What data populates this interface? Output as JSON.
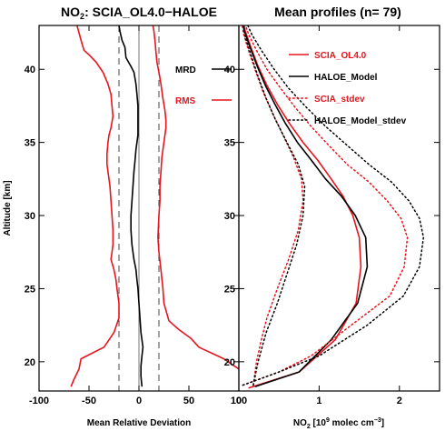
{
  "chart_data": [
    {
      "type": "line",
      "title_main": "NO",
      "title_sub": "2",
      "title_rest": ": SCIA_OL4.0−HALOE",
      "xlabel": "Mean Relative Deviation",
      "ylabel": "Altitude [km]",
      "xlim": [
        -100,
        100
      ],
      "ylim": [
        18,
        43
      ],
      "xticks": [
        -100,
        -50,
        0,
        50,
        100
      ],
      "yticks": [
        20,
        25,
        30,
        35,
        40
      ],
      "grid": false,
      "legend_position": "top-right",
      "reference_lines": [
        {
          "x": -20,
          "style": "dashed",
          "color": "#444444"
        },
        {
          "x": 0,
          "style": "solid",
          "color": "#777777"
        },
        {
          "x": 20,
          "style": "dashed",
          "color": "#444444"
        }
      ],
      "series": [
        {
          "name": "MRD",
          "color": "#000000",
          "x": [
            3,
            2,
            2,
            3,
            4,
            3,
            2,
            1,
            0,
            -1,
            -2,
            -3,
            -5,
            -7,
            -8,
            -8,
            -7,
            -6,
            -5,
            -4,
            -3,
            -2,
            -1,
            -1,
            -1,
            -1,
            -2,
            -3,
            -5,
            -8,
            -13,
            -14,
            -17,
            -19,
            -20
          ],
          "y": [
            18.3,
            19,
            19.7,
            20.4,
            21,
            21.5,
            22,
            23,
            24,
            25,
            25.6,
            26.3,
            27,
            28,
            29,
            30,
            31,
            32,
            33,
            33.7,
            34.5,
            35,
            35.5,
            36,
            36.8,
            37.5,
            38.3,
            39,
            39.8,
            40.2,
            40.8,
            41.5,
            42,
            42.6,
            43
          ]
        },
        {
          "name": "RMS",
          "color": "#e8141e",
          "x": [
            -68,
            -65,
            -60,
            -58,
            -35,
            -25,
            -20,
            -20,
            -22,
            -23,
            -25,
            -28,
            -26,
            -26,
            -27,
            -28,
            -29,
            -31,
            -32,
            -32,
            -31,
            -30,
            -28,
            -26,
            -27,
            -28,
            -31,
            -36,
            -43,
            -50,
            -55,
            -58,
            -60,
            -62,
            -65
          ],
          "y": [
            18.3,
            18.8,
            19.5,
            20.2,
            21,
            22,
            23,
            24,
            25,
            25.6,
            26.3,
            27,
            28,
            29,
            30,
            31,
            32,
            33,
            33.5,
            34.2,
            35,
            35.5,
            36,
            36.8,
            37.5,
            38.3,
            39,
            39.8,
            40.5,
            41,
            41.3,
            42,
            42.5,
            43,
            43.5
          ]
        },
        {
          "name": "",
          "color": "#e8141e",
          "x": [
            108,
            100,
            85,
            60,
            52,
            40,
            30,
            25,
            24,
            22,
            20,
            19,
            20,
            21,
            21,
            22,
            23,
            24,
            25,
            26,
            27,
            27,
            26,
            24,
            22,
            20,
            18,
            17,
            16,
            15,
            14
          ],
          "y": [
            18.8,
            19.5,
            20.2,
            21,
            21.6,
            22.2,
            22.8,
            24,
            25,
            26.3,
            27.5,
            28.5,
            30,
            31,
            32,
            33,
            34,
            34.5,
            35,
            35.5,
            36,
            36.5,
            37.2,
            38,
            39,
            39.8,
            40.5,
            41.2,
            42,
            42.6,
            43
          ]
        }
      ]
    },
    {
      "type": "line",
      "title": "Mean profiles (n= 79)",
      "xlabel_main": "NO",
      "xlabel_sub": "2",
      "xlabel_mid": " [10",
      "xlabel_sup": "9",
      "xlabel_rest": " molec cm",
      "xlabel_sup2": "−3",
      "xlabel_end": "]",
      "ylabel": "",
      "xlim": [
        0,
        2.5
      ],
      "ylim": [
        18,
        43
      ],
      "xticks": [
        0,
        1,
        2
      ],
      "yticks": [
        20,
        25,
        30,
        35,
        40
      ],
      "grid": false,
      "legend_position": "top-right",
      "series": [
        {
          "name": "SCIA_OL4.0",
          "color": "#e8141e",
          "dash": "solid",
          "x": [
            0.12,
            0.75,
            1.2,
            1.46,
            1.52,
            1.5,
            1.42,
            1.3,
            1.15,
            0.98,
            0.8,
            0.63,
            0.48,
            0.35,
            0.24,
            0.15,
            0.08,
            0.05
          ],
          "y": [
            18.2,
            19.3,
            21.5,
            24,
            26.5,
            28.5,
            30,
            31.3,
            32.5,
            33.8,
            35,
            36.3,
            37.6,
            38.9,
            40.2,
            41.5,
            42.6,
            43.4
          ]
        },
        {
          "name": "HALOE_Model",
          "color": "#000000",
          "dash": "solid",
          "x": [
            0.2,
            0.75,
            1.15,
            1.48,
            1.6,
            1.58,
            1.45,
            1.28,
            1.08,
            0.9,
            0.73,
            0.58,
            0.45,
            0.33,
            0.23,
            0.14,
            0.07,
            0.04
          ],
          "y": [
            18.3,
            19.3,
            21.5,
            24,
            26.5,
            28.5,
            30,
            31.3,
            32.5,
            33.8,
            35,
            36.3,
            37.6,
            38.9,
            40.2,
            41.5,
            42.6,
            43.4
          ]
        },
        {
          "name": "SCIA_stdev",
          "color": "#e8141e",
          "dash": "dotted",
          "x": [
            0.05,
            0.5,
            0.9,
            1.4,
            1.88,
            2.06,
            2.1,
            2.02,
            1.85,
            1.62,
            1.35,
            1.12,
            0.9,
            0.7,
            0.52,
            0.35,
            0.22,
            0.12,
            0.06
          ],
          "y": [
            18.4,
            19.3,
            20.4,
            22.5,
            24.5,
            26.5,
            28.5,
            29.8,
            31,
            32.3,
            33.5,
            34.8,
            36.1,
            37.4,
            38.7,
            40,
            41.3,
            42.4,
            43.4
          ]
        },
        {
          "name": "",
          "color": "#e8141e",
          "dash": "dotted",
          "x": [
            0.18,
            0.22,
            0.28,
            0.35,
            0.48,
            0.62,
            0.74,
            0.8,
            0.78,
            0.68,
            0.55,
            0.42,
            0.3,
            0.2,
            0.12,
            0.06,
            0.03
          ],
          "y": [
            18.4,
            20,
            21.5,
            23,
            25,
            27,
            29,
            31,
            32.5,
            34,
            35.5,
            37,
            38.5,
            40,
            41.3,
            42.4,
            43.4
          ]
        },
        {
          "name": "HALOE_Model_stdev",
          "color": "#000000",
          "dash": "dotted",
          "x": [
            0.05,
            0.5,
            1.0,
            1.6,
            2.05,
            2.25,
            2.3,
            2.25,
            2.12,
            1.9,
            1.62,
            1.35,
            1.08,
            0.84,
            0.62,
            0.44,
            0.28,
            0.16,
            0.08
          ],
          "y": [
            18.4,
            19.3,
            20.4,
            22.5,
            24.5,
            26.5,
            28.5,
            29.8,
            31,
            32.3,
            33.5,
            34.8,
            36.1,
            37.4,
            38.7,
            40,
            41.3,
            42.4,
            43.4
          ]
        },
        {
          "name": "",
          "color": "#000000",
          "dash": "dotted",
          "x": [
            0.18,
            0.24,
            0.34,
            0.48,
            0.6,
            0.72,
            0.8,
            0.82,
            0.74,
            0.6,
            0.46,
            0.34,
            0.24,
            0.15,
            0.08,
            0.04
          ],
          "y": [
            18.4,
            20,
            22,
            24,
            26,
            28,
            30,
            32,
            33.5,
            35,
            36.5,
            38,
            39.5,
            41,
            42.2,
            43.4
          ]
        }
      ]
    }
  ]
}
